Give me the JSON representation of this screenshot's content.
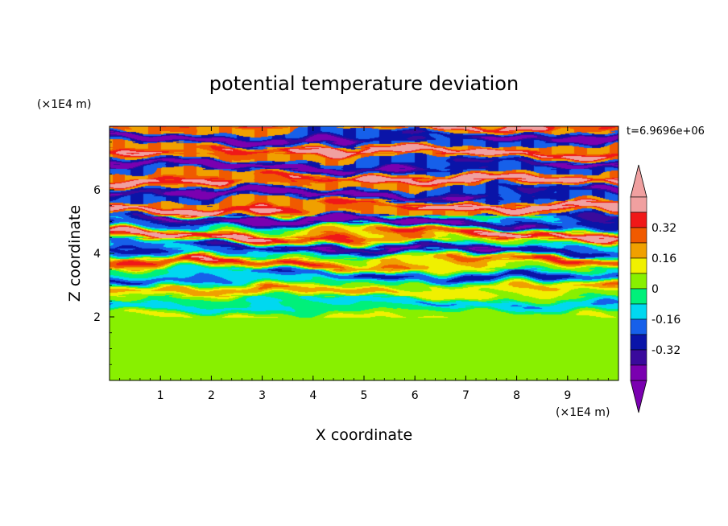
{
  "chart_data": {
    "type": "heatmap",
    "title": "potential temperature deviation",
    "xlabel": "X coordinate",
    "ylabel": "Z coordinate",
    "x_unit": "(×1E4 m)",
    "y_unit": "(×1E4 m)",
    "time_label": "t=6.9696e+06",
    "xlim": [
      0,
      10
    ],
    "ylim": [
      0,
      8
    ],
    "x_ticks": [
      "1",
      "2",
      "3",
      "4",
      "5",
      "6",
      "7",
      "8",
      "9"
    ],
    "y_ticks": [
      "2",
      "4",
      "6"
    ],
    "colorbar": {
      "levels": [
        -0.48,
        -0.4,
        -0.32,
        -0.24,
        -0.16,
        -0.08,
        0,
        0.08,
        0.16,
        0.24,
        0.32,
        0.4,
        0.48
      ],
      "tick_labels": [
        "0.32",
        "0.16",
        "0",
        "-0.16",
        "-0.32"
      ],
      "tick_values": [
        0.32,
        0.16,
        0,
        -0.16,
        -0.32
      ],
      "colors": [
        "#7a00b0",
        "#3a0a9c",
        "#0a14a8",
        "#1660ea",
        "#00d8f0",
        "#00f07a",
        "#88f000",
        "#f0f000",
        "#f0a000",
        "#f05a00",
        "#f01818",
        "#f0a0a0"
      ],
      "extend_low_color": "#7a00b0",
      "extend_high_color": "#f0a0a0"
    },
    "regions": [
      {
        "z_range": [
          0,
          2
        ],
        "description_values": "lower layer ~0 to +0.08 (green / yellow-green)"
      },
      {
        "z_range": [
          2,
          8
        ],
        "description_values": "upper layer alternating horizontal bands from -0.48 to +0.48"
      }
    ]
  }
}
